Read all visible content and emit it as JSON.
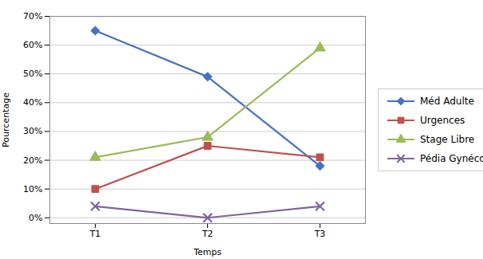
{
  "chart_data": {
    "type": "line",
    "categories": [
      "T1",
      "T2",
      "T3"
    ],
    "series": [
      {
        "name": "Méd Adulte",
        "color": "#4472C4",
        "marker": "diamond",
        "values": [
          65,
          49,
          18
        ]
      },
      {
        "name": "Urgences",
        "color": "#C0504D",
        "marker": "square",
        "values": [
          10,
          25,
          21
        ]
      },
      {
        "name": "Stage Libre",
        "color": "#9BBB59",
        "marker": "triangle",
        "values": [
          21,
          28,
          59
        ]
      },
      {
        "name": "Pédia Gynéco",
        "color": "#8064A2",
        "marker": "x",
        "values": [
          4,
          0,
          4
        ]
      }
    ],
    "xlabel": "Temps",
    "ylabel": "Pourcentage",
    "ylim": [
      -2,
      70
    ],
    "yticks": [
      {
        "value": 0,
        "label": "0%"
      },
      {
        "value": 10,
        "label": "10%"
      },
      {
        "value": 20,
        "label": "20%"
      },
      {
        "value": 30,
        "label": "30%"
      },
      {
        "value": 40,
        "label": "40%"
      },
      {
        "value": 50,
        "label": "50%"
      },
      {
        "value": 60,
        "label": "60%"
      },
      {
        "value": 70,
        "label": "70%"
      }
    ],
    "grid": true,
    "legend": "right"
  }
}
